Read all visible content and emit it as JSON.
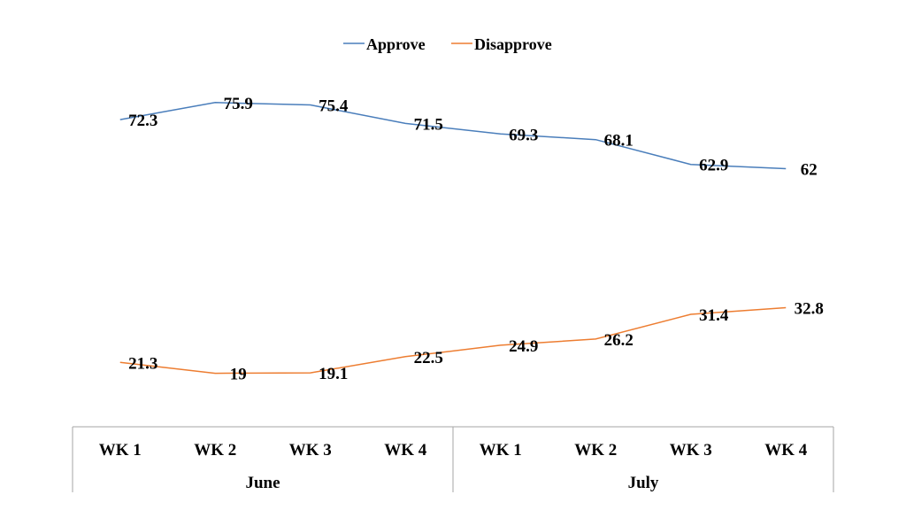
{
  "chart_data": {
    "type": "line",
    "categories": [
      "WK 1",
      "WK 2",
      "WK 3",
      "WK 4",
      "WK 1",
      "WK 2",
      "WK 3",
      "WK 4"
    ],
    "groups": [
      {
        "label": "June",
        "span": 4
      },
      {
        "label": "July",
        "span": 4
      }
    ],
    "series": [
      {
        "name": "Approve",
        "color": "#4a7ebb",
        "values": [
          72.3,
          75.9,
          75.4,
          71.5,
          69.3,
          68.1,
          62.9,
          62
        ],
        "labels": [
          "72.3",
          "75.9",
          "75.4",
          "71.5",
          "69.3",
          "68.1",
          "62.9",
          "62"
        ]
      },
      {
        "name": "Disapprove",
        "color": "#ed7d31",
        "values": [
          21.3,
          19,
          19.1,
          22.5,
          24.9,
          26.2,
          31.4,
          32.8
        ],
        "labels": [
          "21.3",
          "19",
          "19.1",
          "22.5",
          "24.9",
          "26.2",
          "31.4",
          "32.8"
        ]
      }
    ],
    "ylim": [
      10,
      90
    ],
    "grid": false,
    "legend_position": "top",
    "title": "",
    "xlabel": "",
    "ylabel": ""
  }
}
